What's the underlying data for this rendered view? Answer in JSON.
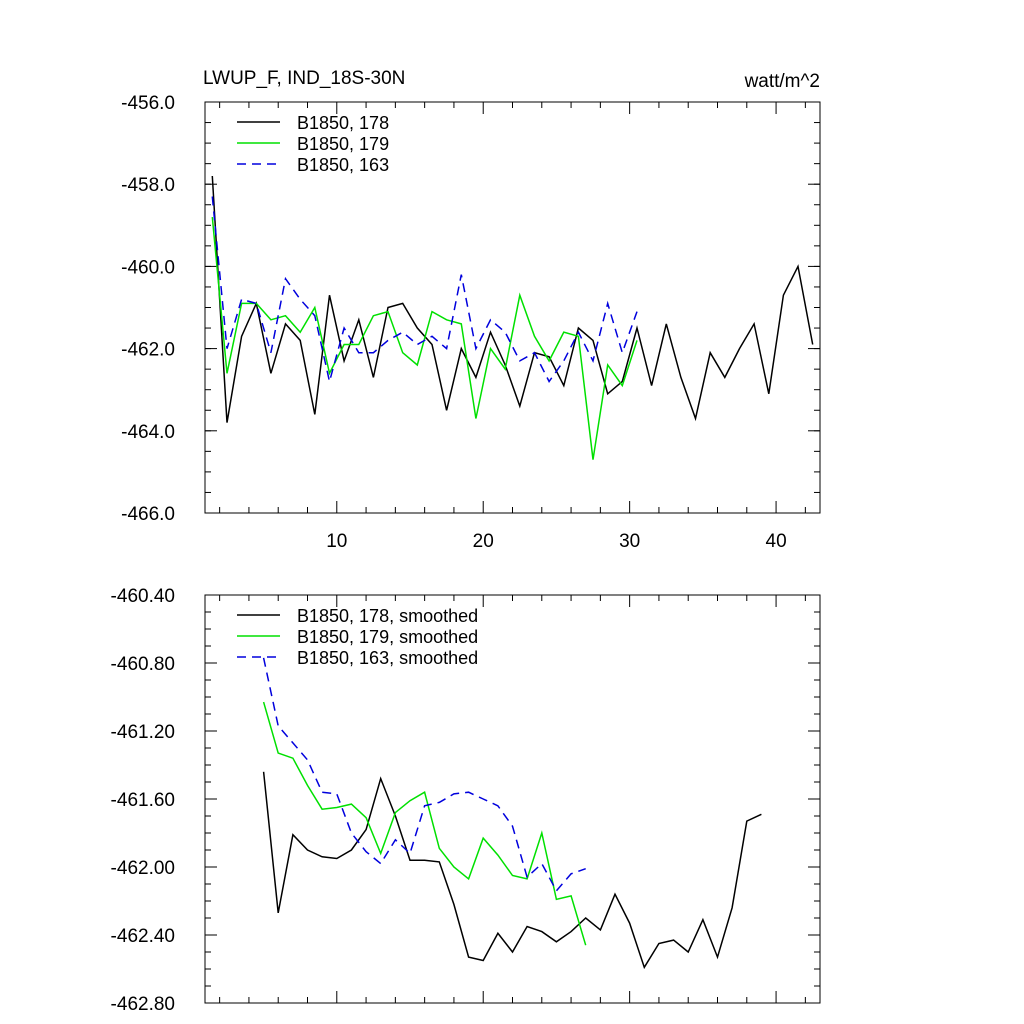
{
  "header": {
    "title": "LWUP_F, IND_18S-30N",
    "units": "watt/m^2"
  },
  "chart_data": [
    {
      "type": "line",
      "xlim": [
        1,
        43
      ],
      "ylim": [
        -466,
        -456
      ],
      "x_ticks": [
        10,
        20,
        30,
        40
      ],
      "y_ticks": [
        "-456.0",
        "-458.0",
        "-460.0",
        "-462.0",
        "-464.0",
        "-466.0"
      ],
      "legend_position": "top-left",
      "series": [
        {
          "name": "B1850, 178",
          "color": "#000000",
          "dash": "solid",
          "x": [
            1.5,
            2.5,
            3.5,
            4.5,
            5.5,
            6.5,
            7.5,
            8.5,
            9.5,
            10.5,
            11.5,
            12.5,
            13.5,
            14.5,
            15.5,
            16.5,
            17.5,
            18.5,
            19.5,
            20.5,
            21.5,
            22.5,
            23.5,
            24.5,
            25.5,
            26.5,
            27.5,
            28.5,
            29.5,
            30.5,
            31.5,
            32.5,
            33.5,
            34.5,
            35.5,
            36.5,
            37.5,
            38.5,
            39.5,
            40.5,
            41.5,
            42.5
          ],
          "values": [
            -457.8,
            -463.8,
            -461.7,
            -460.9,
            -462.6,
            -461.4,
            -461.8,
            -463.6,
            -460.7,
            -462.3,
            -461.3,
            -462.7,
            -461.0,
            -460.9,
            -461.5,
            -461.9,
            -463.5,
            -462.0,
            -462.7,
            -461.6,
            -462.4,
            -463.4,
            -462.1,
            -462.2,
            -462.9,
            -461.5,
            -461.8,
            -463.1,
            -462.8,
            -461.5,
            -462.9,
            -461.4,
            -462.7,
            -463.7,
            -462.1,
            -462.7,
            -462.0,
            -461.4,
            -463.1,
            -460.7,
            -460.0,
            -461.9
          ]
        },
        {
          "name": "B1850, 179",
          "color": "#00e000",
          "dash": "solid",
          "x": [
            1.5,
            2.5,
            3.5,
            4.5,
            5.5,
            6.5,
            7.5,
            8.5,
            9.5,
            10.5,
            11.5,
            12.5,
            13.5,
            14.5,
            15.5,
            16.5,
            17.5,
            18.5,
            19.5,
            20.5,
            21.5,
            22.5,
            23.5,
            24.5,
            25.5,
            26.5,
            27.5,
            28.5,
            29.5,
            30.5
          ],
          "values": [
            -458.8,
            -462.6,
            -460.9,
            -460.9,
            -461.3,
            -461.2,
            -461.6,
            -461.0,
            -462.6,
            -461.9,
            -461.9,
            -461.2,
            -461.1,
            -462.1,
            -462.4,
            -461.1,
            -461.3,
            -461.4,
            -463.7,
            -462.0,
            -462.5,
            -460.7,
            -461.7,
            -462.3,
            -461.6,
            -461.7,
            -464.7,
            -462.4,
            -462.9,
            -461.8
          ]
        },
        {
          "name": "B1850, 163",
          "color": "#0000dd",
          "dash": "dashed",
          "x": [
            1.5,
            2.5,
            3.5,
            4.5,
            5.5,
            6.5,
            7.5,
            8.5,
            9.5,
            10.5,
            11.5,
            12.5,
            13.5,
            14.5,
            15.5,
            16.5,
            17.5,
            18.5,
            19.5,
            20.5,
            21.5,
            22.5,
            23.5,
            24.5,
            25.5,
            26.5,
            27.5,
            28.5,
            29.5,
            30.5
          ],
          "values": [
            -458.3,
            -462.0,
            -460.8,
            -460.9,
            -462.1,
            -460.3,
            -460.8,
            -461.2,
            -462.8,
            -461.5,
            -462.1,
            -462.1,
            -461.8,
            -461.6,
            -461.9,
            -461.7,
            -462.0,
            -460.2,
            -462.0,
            -461.3,
            -461.6,
            -462.3,
            -462.1,
            -462.8,
            -462.3,
            -461.6,
            -462.3,
            -460.9,
            -462.1,
            -461.1
          ]
        }
      ]
    },
    {
      "type": "line",
      "xlim": [
        1,
        43
      ],
      "ylim": [
        -462.8,
        -460.4
      ],
      "y_ticks": [
        "-460.40",
        "-460.80",
        "-461.20",
        "-461.60",
        "-462.00",
        "-462.40",
        "-462.80"
      ],
      "legend_position": "top-left",
      "series": [
        {
          "name": "B1850, 178, smoothed",
          "color": "#000000",
          "dash": "solid",
          "x": [
            5,
            6,
            7,
            8,
            9,
            10,
            11,
            12,
            13,
            14,
            15,
            16,
            17,
            18,
            19,
            20,
            21,
            22,
            23,
            24,
            25,
            26,
            27,
            28,
            29,
            30,
            31,
            32,
            33,
            34,
            35,
            36,
            37,
            38,
            39
          ],
          "values": [
            -461.44,
            -462.27,
            -461.81,
            -461.9,
            -461.94,
            -461.95,
            -461.9,
            -461.78,
            -461.48,
            -461.7,
            -461.96,
            -461.96,
            -461.97,
            -462.22,
            -462.53,
            -462.55,
            -462.39,
            -462.5,
            -462.35,
            -462.38,
            -462.44,
            -462.38,
            -462.3,
            -462.37,
            -462.16,
            -462.33,
            -462.59,
            -462.45,
            -462.43,
            -462.5,
            -462.31,
            -462.53,
            -462.24,
            -461.73,
            -461.69
          ]
        },
        {
          "name": "B1850, 179, smoothed",
          "color": "#00e000",
          "dash": "solid",
          "x": [
            5,
            6,
            7,
            8,
            9,
            10,
            11,
            12,
            13,
            14,
            15,
            16,
            17,
            18,
            19,
            20,
            21,
            22,
            23,
            24,
            25,
            26,
            27
          ],
          "values": [
            -461.03,
            -461.33,
            -461.36,
            -461.52,
            -461.66,
            -461.65,
            -461.63,
            -461.71,
            -461.92,
            -461.68,
            -461.61,
            -461.56,
            -461.89,
            -462.0,
            -462.07,
            -461.83,
            -461.93,
            -462.05,
            -462.07,
            -461.8,
            -462.19,
            -462.17,
            -462.46
          ]
        },
        {
          "name": "B1850, 163, smoothed",
          "color": "#0000dd",
          "dash": "dashed",
          "x": [
            5,
            6,
            7,
            8,
            9,
            10,
            11,
            12,
            13,
            14,
            15,
            16,
            17,
            18,
            19,
            20,
            21,
            22,
            23,
            24,
            25,
            26,
            27
          ],
          "values": [
            -460.77,
            -461.17,
            -461.27,
            -461.37,
            -461.56,
            -461.57,
            -461.8,
            -461.91,
            -461.98,
            -461.84,
            -461.92,
            -461.64,
            -461.62,
            -461.57,
            -461.56,
            -461.6,
            -461.64,
            -461.76,
            -462.06,
            -461.98,
            -462.14,
            -462.04,
            -462.01
          ]
        }
      ]
    }
  ]
}
